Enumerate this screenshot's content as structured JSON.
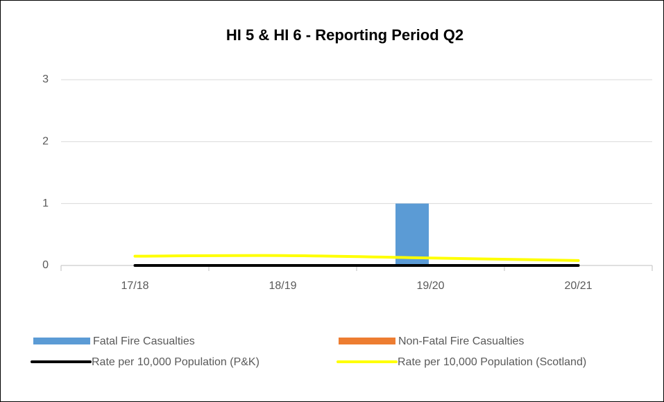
{
  "chart_data": {
    "type": "combo",
    "title": "HI 5 & HI 6 - Reporting Period Q2",
    "categories": [
      "17/18",
      "18/19",
      "19/20",
      "20/21"
    ],
    "series": [
      {
        "name": "Fatal Fire Casualties",
        "kind": "bar",
        "color": "#5b9bd5",
        "values": [
          0,
          0,
          1,
          0
        ]
      },
      {
        "name": "Non-Fatal Fire Casualties",
        "kind": "bar",
        "color": "#ed7d31",
        "values": [
          0,
          0,
          0,
          0
        ]
      },
      {
        "name": "Rate per 10,000 Population (P&K)",
        "kind": "line",
        "color": "#000000",
        "values": [
          0,
          0,
          0,
          0
        ]
      },
      {
        "name": "Rate per 10,000 Population (Scotland)",
        "kind": "line",
        "color": "#ffff00",
        "values": [
          0.15,
          0.16,
          0.12,
          0.08
        ]
      }
    ],
    "ylim": [
      0,
      3
    ],
    "yticks": [
      0,
      1,
      2,
      3
    ],
    "grid": true
  }
}
